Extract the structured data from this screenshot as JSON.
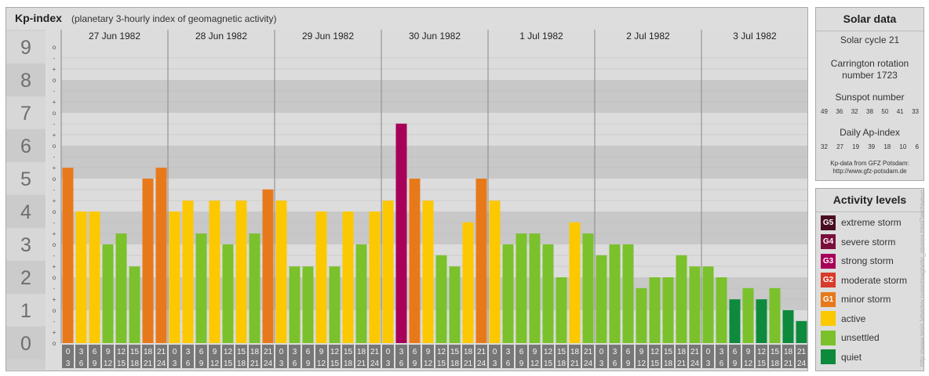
{
  "header": {
    "title": "Kp-index",
    "subtitle": "(planetary 3-hourly index of geomagnetic activity)"
  },
  "colors": {
    "quiet": "#0e8a3c",
    "unsettled": "#7ac12c",
    "active": "#fcc800",
    "minor_storm": "#e8791b",
    "moderate_storm": "#d83a2b",
    "strong_storm": "#a6005a",
    "severe_storm": "#7a0f3c",
    "extreme_storm": "#4a0d20",
    "panel_bg": "#dddddd",
    "band_dark": "#c8c8c8",
    "band_light": "#dcdcdc",
    "axis_cell": "#777777"
  },
  "chart_data": {
    "type": "bar",
    "days": [
      "27 Jun 1982",
      "28 Jun 1982",
      "29 Jun 1982",
      "30 Jun 1982",
      "1 Jul 1982",
      "2 Jul 1982",
      "3 Jul 1982"
    ],
    "intervals_top": [
      "0",
      "3",
      "6",
      "9",
      "12",
      "15",
      "18",
      "21"
    ],
    "intervals_bottom": [
      "3",
      "6",
      "9",
      "12",
      "15",
      "18",
      "21",
      "24"
    ],
    "y_ticks": [
      "0",
      "1",
      "2",
      "3",
      "4",
      "5",
      "6",
      "7",
      "8",
      "9"
    ],
    "y_subticks": [
      "o",
      "+",
      "-"
    ],
    "ylim": [
      0,
      9.33
    ],
    "kp_values": [
      [
        5.33,
        4,
        4,
        3,
        3.33,
        2.33,
        5,
        5.33
      ],
      [
        4,
        4.33,
        3.33,
        4.33,
        3,
        4.33,
        3.33,
        4.67
      ],
      [
        4.33,
        2.33,
        2.33,
        4,
        2.33,
        4,
        3,
        4
      ],
      [
        4.33,
        6.67,
        5,
        4.33,
        2.67,
        2.33,
        3.67,
        5
      ],
      [
        4.33,
        3,
        3.33,
        3.33,
        3,
        2,
        3.67,
        3.33
      ],
      [
        2.67,
        3,
        3,
        1.67,
        2,
        2,
        2.67,
        2.33
      ],
      [
        2.33,
        2,
        1.33,
        1.67,
        1.33,
        1.67,
        1,
        0.67
      ]
    ],
    "activity": [
      [
        "minor_storm",
        "active",
        "active",
        "unsettled",
        "unsettled",
        "unsettled",
        "minor_storm",
        "minor_storm"
      ],
      [
        "active",
        "active",
        "unsettled",
        "active",
        "unsettled",
        "active",
        "unsettled",
        "minor_storm"
      ],
      [
        "active",
        "unsettled",
        "unsettled",
        "active",
        "unsettled",
        "active",
        "unsettled",
        "active"
      ],
      [
        "active",
        "strong_storm",
        "minor_storm",
        "active",
        "unsettled",
        "unsettled",
        "active",
        "minor_storm"
      ],
      [
        "active",
        "unsettled",
        "unsettled",
        "unsettled",
        "unsettled",
        "unsettled",
        "active",
        "unsettled"
      ],
      [
        "unsettled",
        "unsettled",
        "unsettled",
        "unsettled",
        "unsettled",
        "unsettled",
        "unsettled",
        "unsettled"
      ],
      [
        "unsettled",
        "unsettled",
        "quiet",
        "unsettled",
        "quiet",
        "unsettled",
        "quiet",
        "quiet"
      ]
    ]
  },
  "solar": {
    "title": "Solar data",
    "cycle": "Solar cycle 21",
    "carrington_line1": "Carrington rotation",
    "carrington_line2": "number 1723",
    "sunspot_label": "Sunspot number",
    "sunspot_values": [
      "49",
      "36",
      "32",
      "38",
      "50",
      "41",
      "33"
    ],
    "ap_label": "Daily Ap-index",
    "ap_values": [
      "32",
      "27",
      "19",
      "39",
      "18",
      "10",
      "6"
    ],
    "source_line1": "Kp-data from GFZ Potsdam:",
    "source_line2": "http://www.gfz-potsdam.de"
  },
  "activity_levels": {
    "title": "Activity levels",
    "items": [
      {
        "code": "G5",
        "label": "extreme storm",
        "color": "#4a0d20"
      },
      {
        "code": "G4",
        "label": "severe storm",
        "color": "#7a0f3c"
      },
      {
        "code": "G3",
        "label": "strong storm",
        "color": "#a6005a"
      },
      {
        "code": "G2",
        "label": "moderate storm",
        "color": "#d83a2b"
      },
      {
        "code": "G1",
        "label": "minor storm",
        "color": "#e8791b"
      },
      {
        "code": "",
        "label": "active",
        "color": "#fcc800"
      },
      {
        "code": "",
        "label": "unsettled",
        "color": "#7ac12c"
      },
      {
        "code": "",
        "label": "quiet",
        "color": "#0e8a3c"
      }
    ]
  },
  "watermark": "http://www.tesis.lebedev.ru/en/magnetic_storms.html?archive=o"
}
